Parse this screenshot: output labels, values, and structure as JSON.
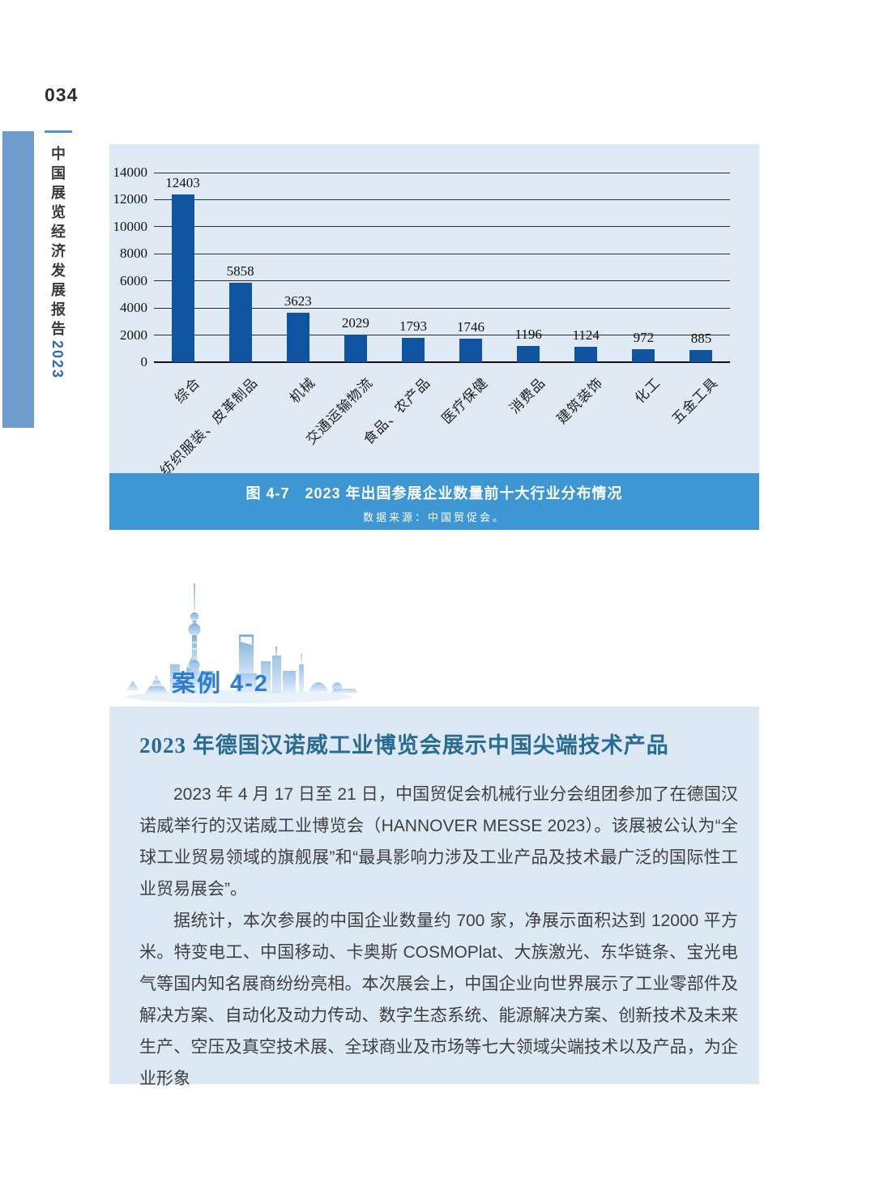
{
  "page": {
    "number": "034"
  },
  "sidebar": {
    "report_title": "中国展览经济发展报告",
    "report_year": "2023"
  },
  "figure": {
    "caption": "图 4-7　2023 年出国参展企业数量前十大行业分布情况",
    "source": "数据来源：中国贸促会。"
  },
  "chart_data": {
    "type": "bar",
    "title": "2023 年出国参展企业数量前十大行业分布情况",
    "categories": [
      "综合",
      "纺织服装、皮革制品",
      "机械",
      "交通运输物流",
      "食品、农产品",
      "医疗保健",
      "消费品",
      "建筑装饰",
      "化工",
      "五金工具"
    ],
    "values": [
      12403,
      5858,
      3623,
      2029,
      1793,
      1746,
      1196,
      1124,
      972,
      885
    ],
    "xlabel": "",
    "ylabel": "",
    "ylim": [
      0,
      14000
    ],
    "ytick_step": 2000,
    "grid": true,
    "legend": false,
    "bar_color": "#0e54a0"
  },
  "case": {
    "label": "案例 4-2",
    "title": "2023 年德国汉诺威工业博览会展示中国尖端技术产品",
    "paragraphs": [
      "2023 年 4 月 17 日至 21 日，中国贸促会机械行业分会组团参加了在德国汉诺威举行的汉诺威工业博览会（HANNOVER MESSE 2023）。该展被公认为“全球工业贸易领域的旗舰展”和“最具影响力涉及工业产品及技术最广泛的国际性工业贸易展会”。",
      "据统计，本次参展的中国企业数量约 700 家，净展示面积达到 12000 平方米。特变电工、中国移动、卡奥斯 COSMOPlat、大族激光、东华链条、宝光电气等国内知名展商纷纷亮相。本次展会上，中国企业向世界展示了工业零部件及解决方案、自动化及动力传动、数字生态系统、能源解决方案、创新技术及未来生产、空压及真空技术展、全球商业及市场等七大领域尖端技术以及产品，为企业形象"
    ]
  },
  "colors": {
    "band": "#6d9bcc",
    "panel_bg": "#e0eaf4",
    "caption_bg": "#3e96d2",
    "bar": "#0e54a0",
    "case_label": "#2f7dd1",
    "case_title": "#2a6b92",
    "body_text": "#3f3f3f",
    "year": "#2b6cb3"
  }
}
